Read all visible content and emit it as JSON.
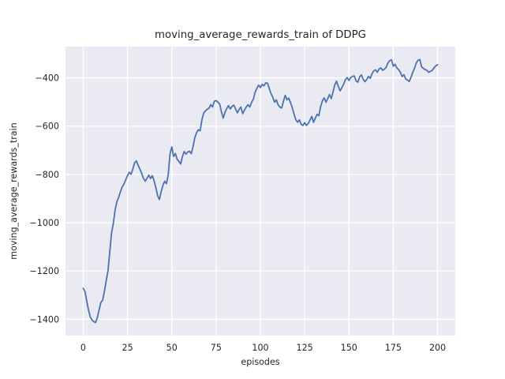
{
  "figure": {
    "title": "moving_average_rewards_train of DDPG",
    "xlabel": "episodes",
    "ylabel": "moving_average_rewards_train"
  },
  "chart_data": {
    "type": "line",
    "title": "moving_average_rewards_train of DDPG",
    "xlabel": "episodes",
    "ylabel": "moving_average_rewards_train",
    "grid": true,
    "legend_position": "none",
    "xticks": [
      0,
      25,
      50,
      75,
      100,
      125,
      150,
      175,
      200
    ],
    "yticks": [
      -400,
      -600,
      -800,
      -1000,
      -1200,
      -1400
    ],
    "xlim": [
      -10,
      210
    ],
    "ylim": [
      -1467.4,
      -270.6
    ],
    "colors": {
      "figure_bg": "#FFFFFF",
      "axes_bg": "#EAEAF2",
      "grid": "#FFFFFF",
      "text": "#262626",
      "line": "#4C72B0"
    },
    "series": [
      {
        "name": "moving_average_rewards_train",
        "color": "#4C72B0",
        "x_start": 0,
        "x_step": 1,
        "values": [
          -1272,
          -1285,
          -1325,
          -1362,
          -1390,
          -1403,
          -1410,
          -1413,
          -1392,
          -1360,
          -1330,
          -1320,
          -1283,
          -1240,
          -1198,
          -1120,
          -1042,
          -1002,
          -948,
          -913,
          -895,
          -872,
          -852,
          -840,
          -822,
          -805,
          -791,
          -799,
          -778,
          -752,
          -744,
          -762,
          -778,
          -796,
          -816,
          -828,
          -816,
          -803,
          -817,
          -805,
          -826,
          -855,
          -888,
          -904,
          -872,
          -845,
          -828,
          -838,
          -800,
          -715,
          -686,
          -726,
          -713,
          -737,
          -746,
          -757,
          -726,
          -705,
          -716,
          -707,
          -704,
          -714,
          -684,
          -648,
          -627,
          -615,
          -619,
          -574,
          -546,
          -537,
          -530,
          -526,
          -511,
          -521,
          -497,
          -494,
          -501,
          -508,
          -540,
          -567,
          -543,
          -527,
          -515,
          -529,
          -518,
          -513,
          -528,
          -545,
          -531,
          -521,
          -548,
          -534,
          -521,
          -511,
          -521,
          -502,
          -489,
          -460,
          -444,
          -430,
          -440,
          -427,
          -433,
          -421,
          -422,
          -444,
          -466,
          -480,
          -501,
          -491,
          -512,
          -521,
          -525,
          -497,
          -473,
          -491,
          -484,
          -502,
          -524,
          -550,
          -574,
          -584,
          -574,
          -592,
          -597,
          -586,
          -597,
          -589,
          -575,
          -560,
          -584,
          -567,
          -551,
          -557,
          -519,
          -495,
          -483,
          -501,
          -486,
          -469,
          -486,
          -458,
          -429,
          -414,
          -436,
          -454,
          -440,
          -426,
          -407,
          -399,
          -411,
          -399,
          -394,
          -392,
          -413,
          -418,
          -396,
          -388,
          -406,
          -416,
          -407,
          -394,
          -402,
          -383,
          -371,
          -367,
          -377,
          -363,
          -359,
          -369,
          -364,
          -356,
          -338,
          -329,
          -325,
          -352,
          -344,
          -359,
          -366,
          -377,
          -395,
          -387,
          -404,
          -409,
          -415,
          -398,
          -378,
          -360,
          -338,
          -327,
          -324,
          -355,
          -361,
          -366,
          -369,
          -377,
          -373,
          -369,
          -359,
          -350,
          -346
        ]
      }
    ]
  }
}
